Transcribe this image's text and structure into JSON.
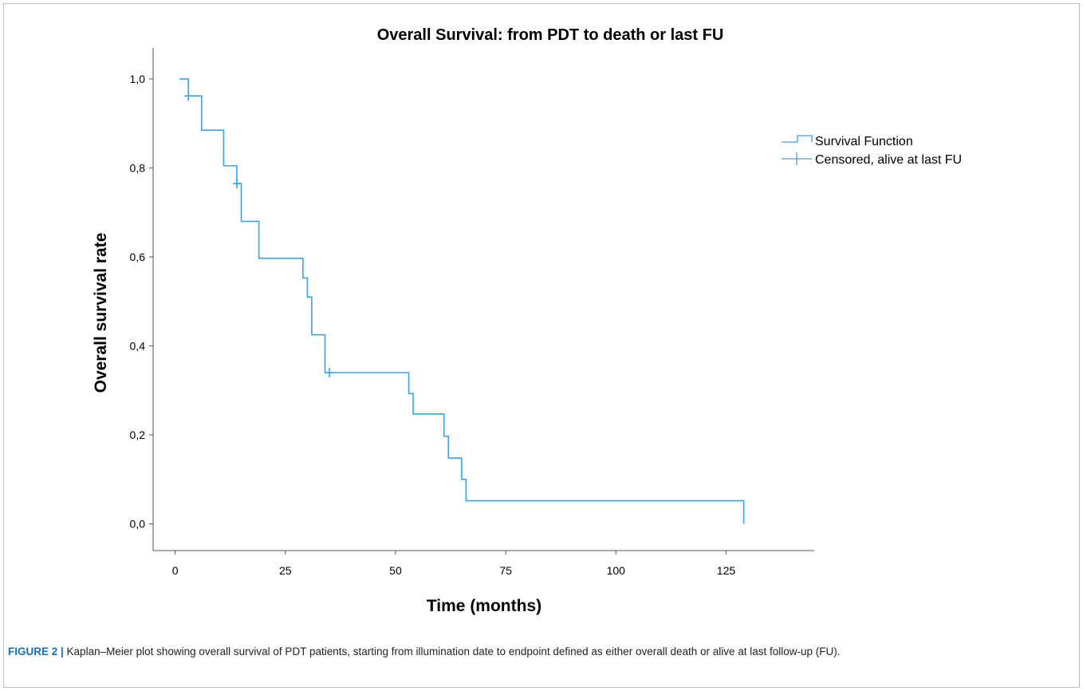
{
  "chart_data": {
    "type": "line",
    "title": "Overall Survival: from PDT to death or last FU",
    "xlabel": "Time (months)",
    "ylabel": "Overall survival rate",
    "xlim": [
      -5,
      145
    ],
    "ylim": [
      -0.06,
      1.07
    ],
    "xticks": [
      0,
      25,
      50,
      75,
      100,
      125
    ],
    "xtick_labels": [
      "0",
      "25",
      "50",
      "75",
      "100",
      "125"
    ],
    "yticks": [
      0.0,
      0.2,
      0.4,
      0.6,
      0.8,
      1.0
    ],
    "ytick_labels": [
      "0,0",
      "0,2",
      "0,4",
      "0,6",
      "0,8",
      "1,0"
    ],
    "grid": false,
    "legend_position": "top-right",
    "color": "#3aa3e3",
    "series": [
      {
        "name": "Survival Function",
        "step": "post",
        "x": [
          1,
          3,
          6,
          11,
          14,
          15,
          19,
          29,
          30,
          31,
          34,
          53,
          54,
          61,
          62,
          65,
          66,
          129
        ],
        "y": [
          1.0,
          0.962,
          0.885,
          0.805,
          0.765,
          0.68,
          0.597,
          0.553,
          0.51,
          0.425,
          0.34,
          0.293,
          0.247,
          0.197,
          0.148,
          0.1,
          0.052,
          0.0
        ]
      },
      {
        "name": "Censored, alive at last FU",
        "marker": "+",
        "x": [
          3,
          14,
          35
        ],
        "y": [
          0.962,
          0.765,
          0.34
        ]
      }
    ]
  },
  "caption": {
    "label": "FIGURE 2 |",
    "text": " Kaplan–Meier plot showing overall survival of PDT patients, starting from illumination date to endpoint defined as either overall death or alive at last follow-up (FU)."
  }
}
